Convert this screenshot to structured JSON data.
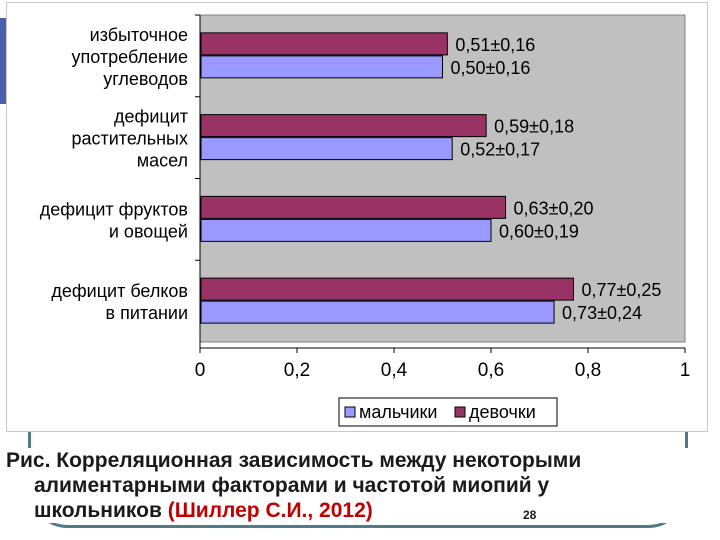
{
  "chart_data": {
    "type": "bar",
    "orientation": "horizontal",
    "categories": [
      "избыточное\nупотребление\nуглеводов",
      "дефицит\nрастительных\nмасел",
      "дефицит фруктов\nи овощей",
      "дефицит белков\nв питании"
    ],
    "series": [
      {
        "name": "девочки",
        "values": [
          0.51,
          0.59,
          0.63,
          0.77
        ],
        "labels": [
          "0,51±0,16",
          "0,59±0,18",
          "0,63±0,20",
          "0,77±0,25"
        ],
        "color": "#993366"
      },
      {
        "name": "мальчики",
        "values": [
          0.5,
          0.52,
          0.6,
          0.73
        ],
        "labels": [
          "0,50±0,16",
          "0,52±0,17",
          "0,60±0,19",
          "0,73±0,24"
        ],
        "color": "#9999ff"
      }
    ],
    "xlim": [
      0,
      1
    ],
    "xticks": [
      "0",
      "0,2",
      "0,4",
      "0,6",
      "0,8",
      "1"
    ],
    "xtick_values": [
      0,
      0.2,
      0.4,
      0.6,
      0.8,
      1
    ],
    "legend": [
      "мальчики",
      "девочки"
    ],
    "legend_position": "bottom",
    "plot_background": "#c0c0c0",
    "grid": false
  },
  "caption": {
    "prefix": "Рис. Корреляционная зависимость между некоторыми",
    "line2": "алиментарными факторами и частотой миопий у",
    "line3_text": "школьников ",
    "line3_cite": "(Шиллер С.И., 2012)"
  },
  "page_number": "28"
}
